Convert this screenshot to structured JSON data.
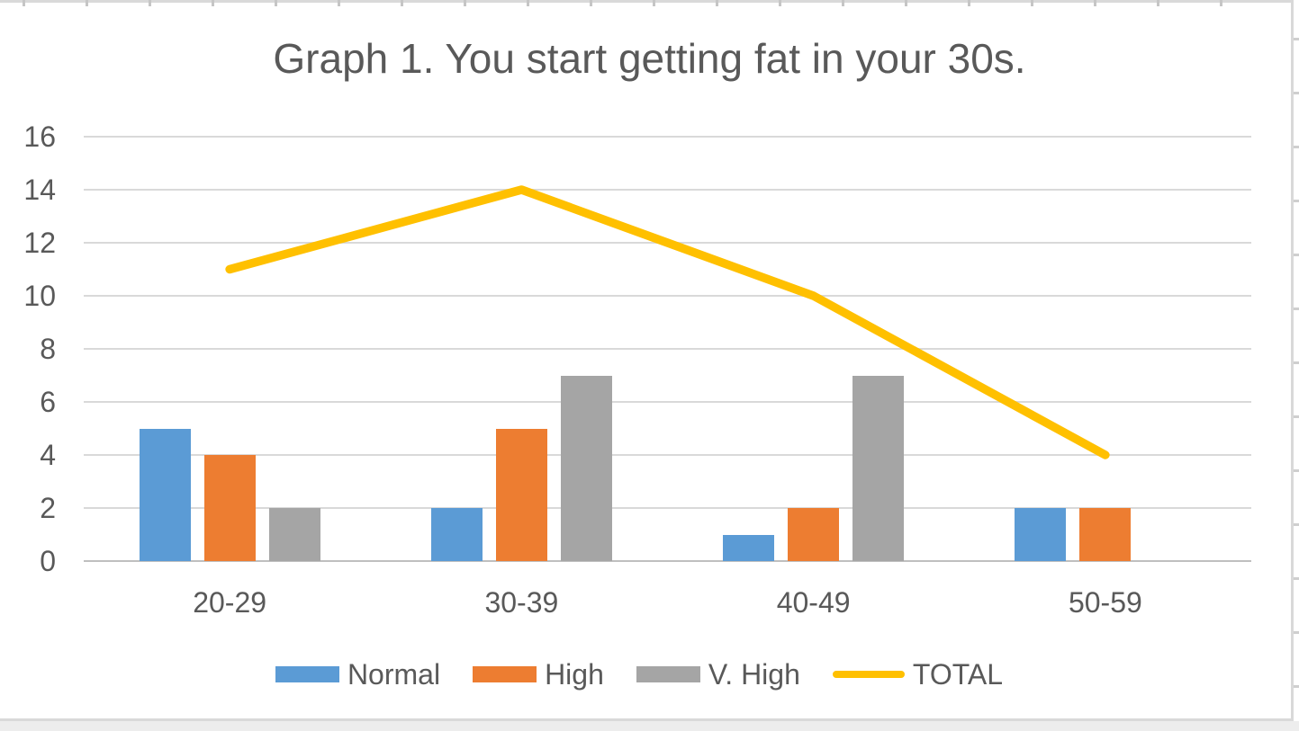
{
  "chart_data": {
    "type": "combo",
    "title": "Graph 1. You start getting fat in your 30s.",
    "categories": [
      "20-29",
      "30-39",
      "40-49",
      "50-59"
    ],
    "series": [
      {
        "name": "Normal",
        "type": "bar",
        "color": "#5B9BD5",
        "values": [
          5,
          2,
          1,
          2
        ]
      },
      {
        "name": "High",
        "type": "bar",
        "color": "#ED7D31",
        "values": [
          4,
          5,
          2,
          2
        ]
      },
      {
        "name": "V. High",
        "type": "bar",
        "color": "#A5A5A5",
        "values": [
          2,
          7,
          7,
          0
        ]
      },
      {
        "name": "TOTAL",
        "type": "line",
        "color": "#FFC000",
        "values": [
          11,
          14,
          10,
          4
        ]
      }
    ],
    "xlabel": "",
    "ylabel": "",
    "ylim": [
      0,
      16
    ],
    "yticks": [
      0,
      2,
      4,
      6,
      8,
      10,
      12,
      14,
      16
    ],
    "grid": true,
    "legend_position": "bottom"
  },
  "style_colors": {
    "text": "#595959",
    "gridline": "#D9D9D9",
    "axis_line": "#BFBFBF",
    "chart_border": "#D9D9D9"
  }
}
